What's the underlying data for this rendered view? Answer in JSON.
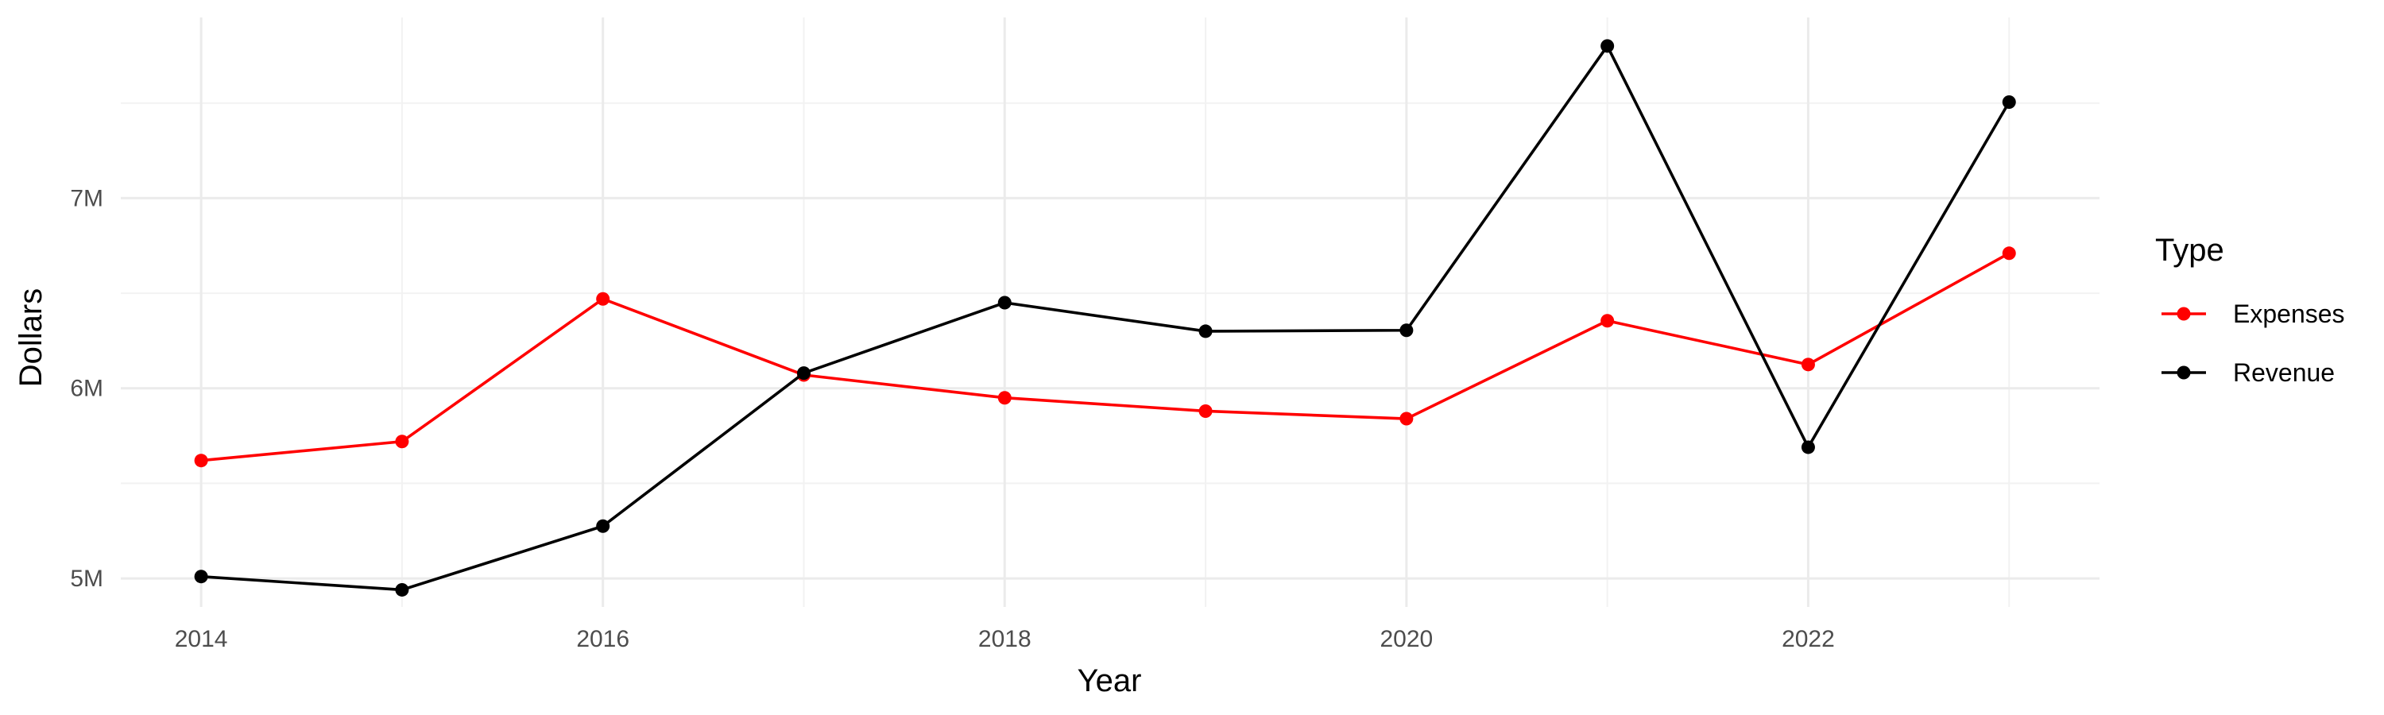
{
  "chart_data": {
    "type": "line",
    "title": "",
    "xlabel": "Year",
    "ylabel": "Dollars",
    "x": [
      2014,
      2015,
      2016,
      2017,
      2018,
      2019,
      2020,
      2021,
      2022,
      2023
    ],
    "x_ticks": [
      2014,
      2016,
      2018,
      2020,
      2022
    ],
    "x_tick_labels": [
      "2014",
      "2016",
      "2018",
      "2020",
      "2022"
    ],
    "xlim": [
      2013.6,
      2023.45
    ],
    "ylim": [
      4850000,
      7950000
    ],
    "y_ticks": [
      5000000,
      6000000,
      7000000
    ],
    "y_tick_labels": [
      "5M",
      "6M",
      "7M"
    ],
    "grid": true,
    "legend": {
      "title": "Type",
      "position": "right"
    },
    "series": [
      {
        "name": "Expenses",
        "color": "#ff0000",
        "values": [
          5620000,
          5720000,
          6470000,
          6070000,
          5950000,
          5880000,
          5840000,
          6355000,
          6125000,
          6710000
        ]
      },
      {
        "name": "Revenue",
        "color": "#000000",
        "values": [
          5010000,
          4940000,
          5275000,
          6080000,
          6450000,
          6300000,
          6305000,
          7800000,
          5690000,
          7505000
        ]
      }
    ]
  }
}
